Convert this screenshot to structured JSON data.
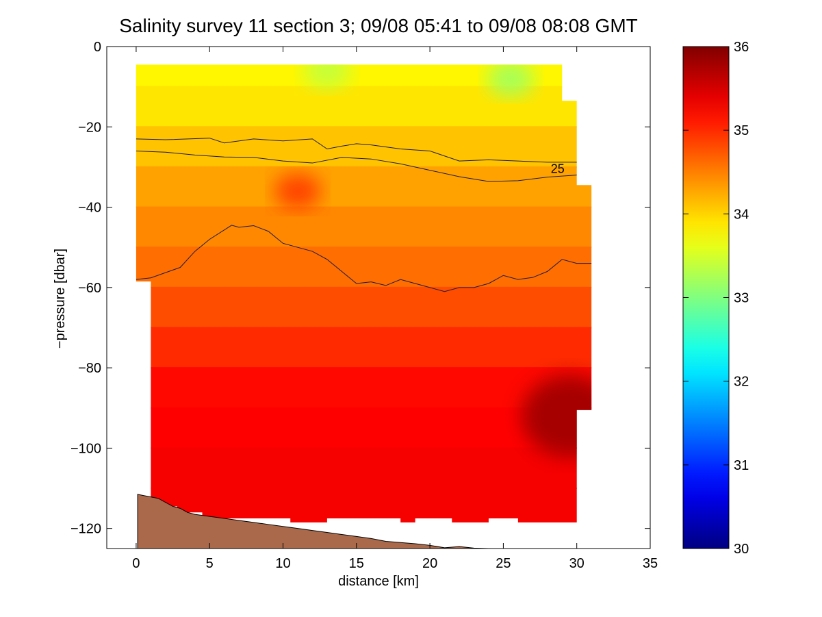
{
  "chart_data": {
    "type": "heatmap",
    "title": "Salinity survey 11 section 3; 09/08 05:41 to 09/08 08:08 GMT",
    "xlabel": "distance [km]",
    "ylabel": "−pressure [dbar]",
    "xlim": [
      -2,
      35
    ],
    "ylim": [
      -125,
      0
    ],
    "xticks": [
      0,
      5,
      10,
      15,
      20,
      25,
      30,
      35
    ],
    "xtick_labels": [
      "0",
      "5",
      "10",
      "15",
      "20",
      "25",
      "30",
      "35"
    ],
    "yticks": [
      0,
      -20,
      -40,
      -60,
      -80,
      -100,
      -120
    ],
    "ytick_labels": [
      "0",
      "−20",
      "−40",
      "−60",
      "−80",
      "−100",
      "−120"
    ],
    "colorbar": {
      "range": [
        30,
        36
      ],
      "ticks": [
        30,
        31,
        32,
        33,
        34,
        35,
        36
      ],
      "tick_labels": [
        "30",
        "31",
        "32",
        "33",
        "34",
        "35",
        "36"
      ],
      "colormap": "jet"
    },
    "salinity_profile": {
      "depth": [
        -5,
        -15,
        -25,
        -35,
        -45,
        -55,
        -65,
        -75,
        -85,
        -95,
        -105,
        -115
      ],
      "values": [
        33.8,
        33.9,
        34.1,
        34.3,
        34.45,
        34.6,
        34.8,
        35.0,
        35.2,
        35.25,
        35.3,
        35.3
      ]
    },
    "features": [
      {
        "kind": "high",
        "x": 29.5,
        "y": -92,
        "value": 35.8
      },
      {
        "kind": "high",
        "x": 11,
        "y": -36,
        "value": 34.9
      },
      {
        "kind": "low",
        "x": 25.5,
        "y": -8,
        "value": 33.2
      },
      {
        "kind": "low",
        "x": 13,
        "y": -6,
        "value": 33.4
      }
    ],
    "contours": [
      {
        "x": [
          0,
          2,
          5,
          6,
          8,
          10,
          12,
          13,
          14,
          15,
          16,
          18,
          20,
          22,
          24,
          26,
          28,
          30
        ],
        "y": [
          -23,
          -23.2,
          -22.8,
          -24,
          -23,
          -23.5,
          -23,
          -25.5,
          -24.8,
          -24.2,
          -24.5,
          -25.5,
          -26,
          -28.5,
          -28.2,
          -28.5,
          -28.8,
          -28.8
        ]
      },
      {
        "x": [
          0,
          2,
          4,
          6,
          8,
          10,
          12,
          14,
          16,
          18,
          20,
          22,
          24,
          26,
          28,
          30
        ],
        "y": [
          -26,
          -26.3,
          -27,
          -27.5,
          -27.6,
          -28.5,
          -29,
          -27.6,
          -28,
          -29.2,
          -30.8,
          -32.4,
          -33.6,
          -33.4,
          -32.5,
          -32
        ]
      },
      {
        "x": [
          0,
          1,
          3,
          4,
          5,
          6.5,
          7,
          8,
          9,
          10,
          12,
          13,
          14,
          15,
          16,
          17,
          18,
          19,
          20,
          21,
          22,
          23,
          24,
          25,
          26,
          27,
          28,
          29,
          30,
          31
        ],
        "y": [
          -58,
          -57.6,
          -55,
          -51,
          -48,
          -44.5,
          -45,
          -44.6,
          -46,
          -49,
          -51,
          -53,
          -56,
          -59,
          -58.6,
          -59.5,
          -58,
          -59,
          -60,
          -61,
          -60,
          -60,
          -59,
          -57,
          -58,
          -57.5,
          -56,
          -53,
          -54,
          -54
        ]
      }
    ],
    "contour_label": {
      "text": "25",
      "x": 28.7,
      "y": -31.5
    },
    "data_coverage": {
      "x": [
        0,
        29,
        29,
        30,
        30,
        31,
        31,
        30,
        30,
        26,
        26,
        24,
        24,
        21.5,
        21.5,
        19,
        19,
        18,
        18,
        13,
        13,
        10.5,
        10.5,
        4.5,
        4.5,
        2.8,
        2.8,
        1,
        1,
        0
      ],
      "y": [
        -4.5,
        -4.5,
        -13.5,
        -13.5,
        -34.5,
        -34.5,
        -90.5,
        -90.5,
        -118.5,
        -118.5,
        -117.5,
        -117.5,
        -118.5,
        -118.5,
        -117.5,
        -117.5,
        -118.5,
        -118.5,
        -117.5,
        -117.5,
        -118.5,
        -118.5,
        -117.5,
        -117.5,
        -116,
        -116,
        -114.5,
        -114.5,
        -58.5,
        -58.5
      ]
    },
    "bathymetry": {
      "x": [
        0.1,
        0.5,
        1.5,
        2,
        2.5,
        3,
        3.5,
        4,
        5,
        6,
        7,
        8,
        9,
        10,
        11,
        12,
        13,
        14,
        15,
        16,
        17,
        18,
        19,
        20,
        21,
        22,
        23,
        24
      ],
      "y": [
        -111.5,
        -111.8,
        -112.5,
        -113.5,
        -114.5,
        -115,
        -116,
        -116.5,
        -117,
        -117.5,
        -118,
        -118.5,
        -119,
        -119.5,
        -120,
        -120.5,
        -121,
        -121.5,
        -122,
        -122.5,
        -123.2,
        -123.5,
        -123.8,
        -124.2,
        -124.8,
        -124.5,
        -124.9,
        -125
      ]
    },
    "colors": {
      "seabed": "#A9694A",
      "contour_line": "#1a1a40",
      "axes": "#000000",
      "background": "#ffffff"
    }
  }
}
